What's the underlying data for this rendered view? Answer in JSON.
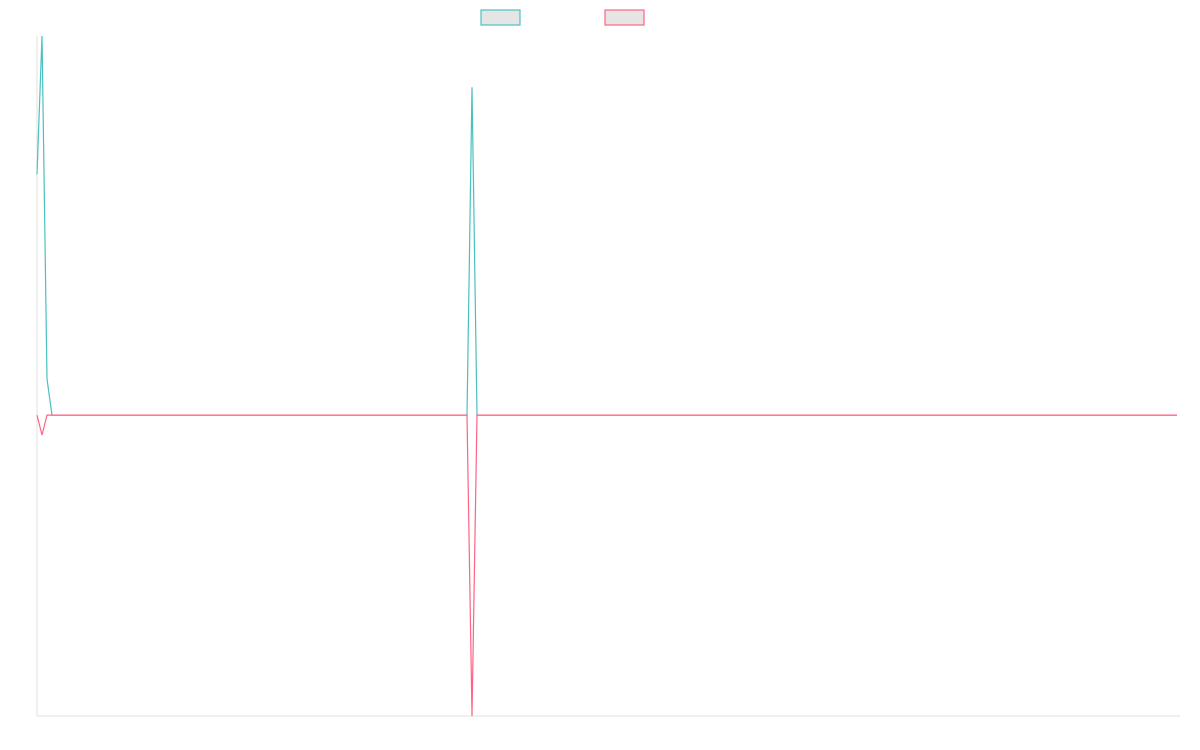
{
  "chart_data": {
    "type": "line",
    "title": "",
    "xlabel": "",
    "ylabel": "",
    "x_count": 229,
    "ylim": [
      -1.0,
      1.26
    ],
    "grid": false,
    "legend_position": "top",
    "series": [
      {
        "color": "#4bc0c0",
        "legend_fill": "#e5e5e5",
        "default_value": 0,
        "points": [
          [
            0,
            0.8
          ],
          [
            1,
            1.26
          ],
          [
            2,
            0.12
          ],
          [
            3,
            0
          ],
          [
            86,
            0
          ],
          [
            87,
            1.09
          ],
          [
            88,
            0
          ]
        ]
      },
      {
        "color": "#ff6384",
        "legend_fill": "#e5e5e5",
        "default_value": 0,
        "points": [
          [
            0,
            0
          ],
          [
            1,
            -0.066
          ],
          [
            3,
            0
          ],
          [
            86,
            0
          ],
          [
            87,
            -1.0
          ],
          [
            88,
            0
          ]
        ]
      }
    ]
  },
  "colors": {
    "axis": "#e0e0e0"
  }
}
